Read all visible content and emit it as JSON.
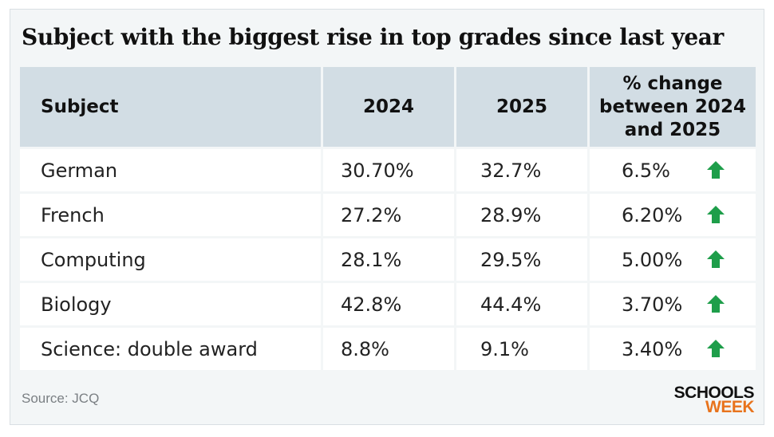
{
  "title": "Subject with the biggest rise in top grades since last year",
  "source": "Source: JCQ",
  "logo": {
    "line1": "SCHOOLS",
    "line2": "WEEK"
  },
  "colors": {
    "header_bg": "#d2dde4",
    "arrow": "#1e9e4a",
    "logo_accent": "#e8731c"
  },
  "icon": "up-arrow-icon",
  "chart_data": {
    "type": "table",
    "title": "Subject with the biggest rise in top grades since last year",
    "columns": [
      "Subject",
      "2024",
      "2025",
      "% change between 2024 and 2025"
    ],
    "rows": [
      {
        "subject": "German",
        "y2024": "30.70%",
        "y2025": "32.7%",
        "change": "6.5%",
        "trend": "up"
      },
      {
        "subject": "French",
        "y2024": "27.2%",
        "y2025": "28.9%",
        "change": "6.20%",
        "trend": "up"
      },
      {
        "subject": "Computing",
        "y2024": "28.1%",
        "y2025": "29.5%",
        "change": "5.00%",
        "trend": "up"
      },
      {
        "subject": "Biology",
        "y2024": "42.8%",
        "y2025": "44.4%",
        "change": "3.70%",
        "trend": "up"
      },
      {
        "subject": "Science: double award",
        "y2024": "8.8%",
        "y2025": "9.1%",
        "change": "3.40%",
        "trend": "up"
      }
    ]
  }
}
